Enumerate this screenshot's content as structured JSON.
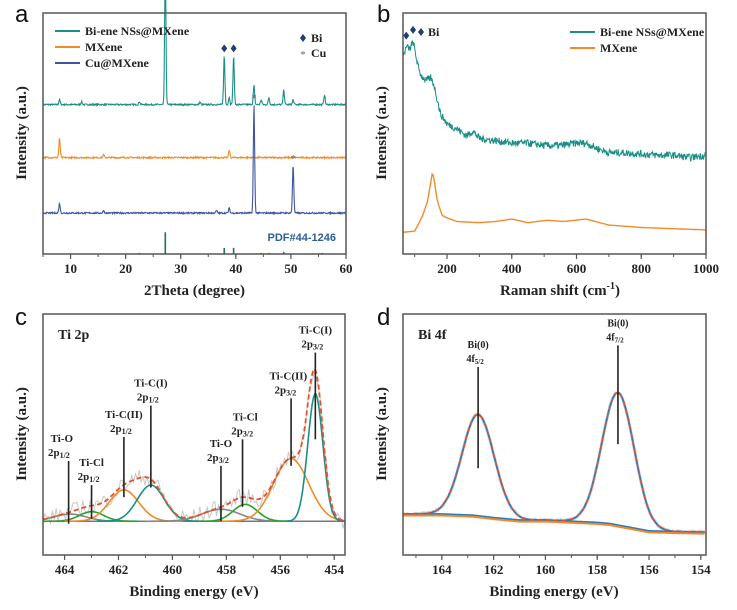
{
  "colors": {
    "teal": "#1a8f86",
    "orange": "#f28a2a",
    "blue": "#3e55a0",
    "navy": "#1e3f70",
    "gray": "#888888",
    "lightgray": "#c8c8c8",
    "green": "#2ca02c",
    "red_dashed": "#e8502a",
    "fit_blue": "#2a7ac0",
    "pdf_blue": "#2e5f93",
    "ref_green": "#1f6f5a"
  },
  "chart_data": [
    {
      "id": "a",
      "panel_letter": "a",
      "type": "line",
      "title": "",
      "xlabel": "2Theta (degree)",
      "ylabel": "Intensity (a.u.)",
      "xlim": [
        5,
        60
      ],
      "xticks": [
        10,
        20,
        30,
        40,
        50,
        60
      ],
      "legend": {
        "placement": "top-left",
        "entries": [
          {
            "label": "Bi-ene NSs@MXene",
            "color": "#1a8f86"
          },
          {
            "label": "MXene",
            "color": "#f28a2a"
          },
          {
            "label": "Cu@MXene",
            "color": "#3e55a0"
          }
        ]
      },
      "marker_legend": {
        "placement": "top-right",
        "entries": [
          {
            "symbol": "diamond",
            "label": "Bi"
          },
          {
            "symbol": "asterisk",
            "label": "Cu"
          }
        ]
      },
      "series": [
        {
          "name": "Bi-ene NSs@MXene",
          "offset": 0.62,
          "peaks": [
            [
              8.0,
              0.02
            ],
            [
              12.0,
              0.012
            ],
            [
              22.5,
              0.012
            ],
            [
              27.2,
              0.56
            ],
            [
              33.5,
              0.01
            ],
            [
              37.9,
              0.2
            ],
            [
              38.8,
              0.03
            ],
            [
              39.6,
              0.2
            ],
            [
              43.3,
              0.08
            ],
            [
              44.6,
              0.02
            ],
            [
              46.0,
              0.03
            ],
            [
              48.7,
              0.06
            ],
            [
              50.4,
              0.02
            ],
            [
              56.1,
              0.04
            ]
          ],
          "markers": [
            {
              "x": 27.2,
              "symbol": "diamond"
            },
            {
              "x": 37.9,
              "symbol": "diamond"
            },
            {
              "x": 39.6,
              "symbol": "diamond"
            }
          ]
        },
        {
          "name": "MXene",
          "offset": 0.4,
          "peaks": [
            [
              8.0,
              0.08
            ],
            [
              16.0,
              0.012
            ],
            [
              38.8,
              0.03
            ]
          ],
          "markers": []
        },
        {
          "name": "Cu@MXene",
          "offset": 0.17,
          "peaks": [
            [
              8.0,
              0.04
            ],
            [
              16.0,
              0.01
            ],
            [
              36.5,
              0.01
            ],
            [
              38.8,
              0.02
            ],
            [
              43.3,
              0.45
            ],
            [
              50.4,
              0.2
            ]
          ],
          "markers": [
            {
              "x": 43.3,
              "symbol": "asterisk"
            },
            {
              "x": 50.4,
              "symbol": "asterisk"
            }
          ]
        }
      ],
      "reference": {
        "label": "PDF#44-1246",
        "sticks": [
          [
            22.5,
            0.05
          ],
          [
            27.2,
            1.0
          ],
          [
            37.9,
            0.28
          ],
          [
            39.6,
            0.28
          ],
          [
            44.6,
            0.05
          ],
          [
            46.0,
            0.05
          ],
          [
            48.7,
            0.1
          ],
          [
            55.7,
            0.05
          ]
        ]
      }
    },
    {
      "id": "b",
      "panel_letter": "b",
      "type": "line",
      "title": "",
      "xlabel": "Raman shift (cm",
      "xlabel_sup": "-1",
      "xlabel_end": ")",
      "ylabel": "Intensity (a.u.)",
      "xlim": [
        64,
        1000
      ],
      "xticks": [
        200,
        400,
        600,
        800,
        1000
      ],
      "legend": {
        "placement": "top-right",
        "entries": [
          {
            "label": "Bi-ene NSs@MXene",
            "color": "#1a8f86"
          },
          {
            "label": "MXene",
            "color": "#f28a2a"
          }
        ]
      },
      "marker_legend": {
        "placement": "top-left",
        "entries": [
          {
            "symbol": "diamond",
            "label": "Bi"
          }
        ]
      },
      "series": [
        {
          "name": "Bi-ene NSs@MXene",
          "x": [
            64,
            75,
            85,
            95,
            100,
            110,
            120,
            135,
            150,
            160,
            170,
            180,
            200,
            230,
            260,
            280,
            300,
            350,
            400,
            450,
            500,
            550,
            600,
            630,
            660,
            700,
            750,
            800,
            850,
            900,
            950,
            1000
          ],
          "y": [
            0.82,
            0.86,
            0.85,
            0.88,
            0.85,
            0.78,
            0.74,
            0.72,
            0.73,
            0.7,
            0.64,
            0.58,
            0.54,
            0.52,
            0.49,
            0.51,
            0.48,
            0.47,
            0.46,
            0.46,
            0.45,
            0.45,
            0.46,
            0.46,
            0.44,
            0.42,
            0.42,
            0.415,
            0.41,
            0.41,
            0.4,
            0.41
          ],
          "noise": 0.015,
          "markers": [
            {
              "x": 74,
              "symbol": "diamond"
            },
            {
              "x": 95,
              "symbol": "diamond"
            }
          ]
        },
        {
          "name": "MXene",
          "x": [
            64,
            100,
            110,
            125,
            140,
            150,
            155,
            160,
            170,
            185,
            200,
            230,
            300,
            350,
            400,
            450,
            510,
            560,
            630,
            700,
            800,
            900,
            1000
          ],
          "y": [
            0.09,
            0.095,
            0.12,
            0.16,
            0.22,
            0.3,
            0.34,
            0.31,
            0.22,
            0.16,
            0.15,
            0.135,
            0.13,
            0.135,
            0.145,
            0.13,
            0.14,
            0.135,
            0.145,
            0.12,
            0.11,
            0.105,
            0.1
          ],
          "noise": 0
        }
      ]
    },
    {
      "id": "c",
      "panel_letter": "c",
      "type": "line",
      "title": "Ti 2p",
      "xlabel": "Binding energy (eV)",
      "ylabel": "Intensity (a.u.)",
      "xlim": [
        464.8,
        453.6
      ],
      "xticks": [
        464,
        462,
        460,
        458,
        456,
        454
      ],
      "baseline": 0.14,
      "components": [
        {
          "name": "Ti-O 2p1/2",
          "center": 463.8,
          "height": 0.03,
          "sigma": 0.6,
          "color": "#888888"
        },
        {
          "name": "Ti-Cl 2p1/2",
          "center": 463.0,
          "height": 0.04,
          "sigma": 0.45,
          "color": "#2ca02c"
        },
        {
          "name": "Ti-C(II) 2p1/2",
          "center": 461.8,
          "height": 0.13,
          "sigma": 0.55,
          "color": "#f28a2a"
        },
        {
          "name": "Ti-C(I) 2p1/2",
          "center": 460.8,
          "height": 0.15,
          "sigma": 0.5,
          "color": "#1a8f86"
        },
        {
          "name": "Ti-O 2p3/2",
          "center": 458.2,
          "height": 0.05,
          "sigma": 0.7,
          "color": "#888888"
        },
        {
          "name": "Ti-Cl 2p3/2",
          "center": 457.3,
          "height": 0.07,
          "sigma": 0.45,
          "color": "#2ca02c"
        },
        {
          "name": "Ti-C(II) 2p3/2",
          "center": 455.6,
          "height": 0.26,
          "sigma": 0.65,
          "color": "#f28a2a"
        },
        {
          "name": "Ti-C(I) 2p3/2",
          "center": 454.7,
          "height": 0.53,
          "sigma": 0.28,
          "color": "#1a8f86"
        }
      ],
      "annotations": [
        {
          "line1": "Ti-O",
          "line2": "2p",
          "sub": "1/2",
          "x": 463.85,
          "top": 0.39,
          "bottom": 0.13,
          "label_x": 464.1
        },
        {
          "line1": "Ti-Cl",
          "line2": "2p",
          "sub": "1/2",
          "x": 463.0,
          "top": 0.29,
          "bottom": 0.15,
          "label_x": 463.0
        },
        {
          "line1": "Ti-C(II)",
          "line2": "2p",
          "sub": "1/2",
          "x": 461.8,
          "top": 0.49,
          "bottom": 0.24,
          "label_x": 461.8
        },
        {
          "line1": "Ti-C(I)",
          "line2": "2p",
          "sub": "1/2",
          "x": 460.8,
          "top": 0.62,
          "bottom": 0.28,
          "label_x": 460.8
        },
        {
          "line1": "Ti-O",
          "line2": "2p",
          "sub": "3/2",
          "x": 458.2,
          "top": 0.37,
          "bottom": 0.14,
          "label_x": 458.2
        },
        {
          "line1": "Ti-Cl",
          "line2": "2p",
          "sub": "3/2",
          "x": 457.4,
          "top": 0.48,
          "bottom": 0.2,
          "label_x": 457.3
        },
        {
          "line1": "Ti-C(II)",
          "line2": "2p",
          "sub": "3/2",
          "x": 455.6,
          "top": 0.65,
          "bottom": 0.37,
          "label_x": 455.7
        },
        {
          "line1": "Ti-C(I)",
          "line2": "2p",
          "sub": "3/2",
          "x": 454.7,
          "top": 0.84,
          "bottom": 0.48,
          "label_x": 454.7
        }
      ]
    },
    {
      "id": "d",
      "panel_letter": "d",
      "type": "line",
      "title": "Bi 4f",
      "xlabel": "Binding energy (eV)",
      "ylabel": "Intensity (a.u.)",
      "xlim": [
        165.5,
        153.8
      ],
      "xticks": [
        164,
        162,
        160,
        158,
        156,
        154
      ],
      "components": [
        {
          "name": "Bi(0) 4f5/2",
          "center": 162.6,
          "height": 0.42,
          "sigma": 0.62
        },
        {
          "name": "Bi(0) 4f7/2",
          "center": 157.2,
          "height": 0.55,
          "sigma": 0.62
        }
      ],
      "background": {
        "x": [
          165.5,
          164,
          162.8,
          162,
          161,
          160,
          159,
          158,
          157.5,
          157,
          156.5,
          156,
          155,
          154,
          153.8
        ],
        "y": [
          0.17,
          0.17,
          0.165,
          0.155,
          0.145,
          0.145,
          0.14,
          0.135,
          0.13,
          0.12,
          0.11,
          0.1,
          0.097,
          0.095,
          0.095
        ]
      },
      "annotations": [
        {
          "line1": "Bi(0)",
          "line2": "4f",
          "sub": "5/2",
          "x": 162.6,
          "top": 0.78,
          "bottom": 0.36,
          "label_x": 162.6
        },
        {
          "line1": "Bi(0)",
          "line2": "4f",
          "sub": "7/2",
          "x": 157.2,
          "top": 0.87,
          "bottom": 0.46,
          "label_x": 157.2
        }
      ]
    }
  ]
}
